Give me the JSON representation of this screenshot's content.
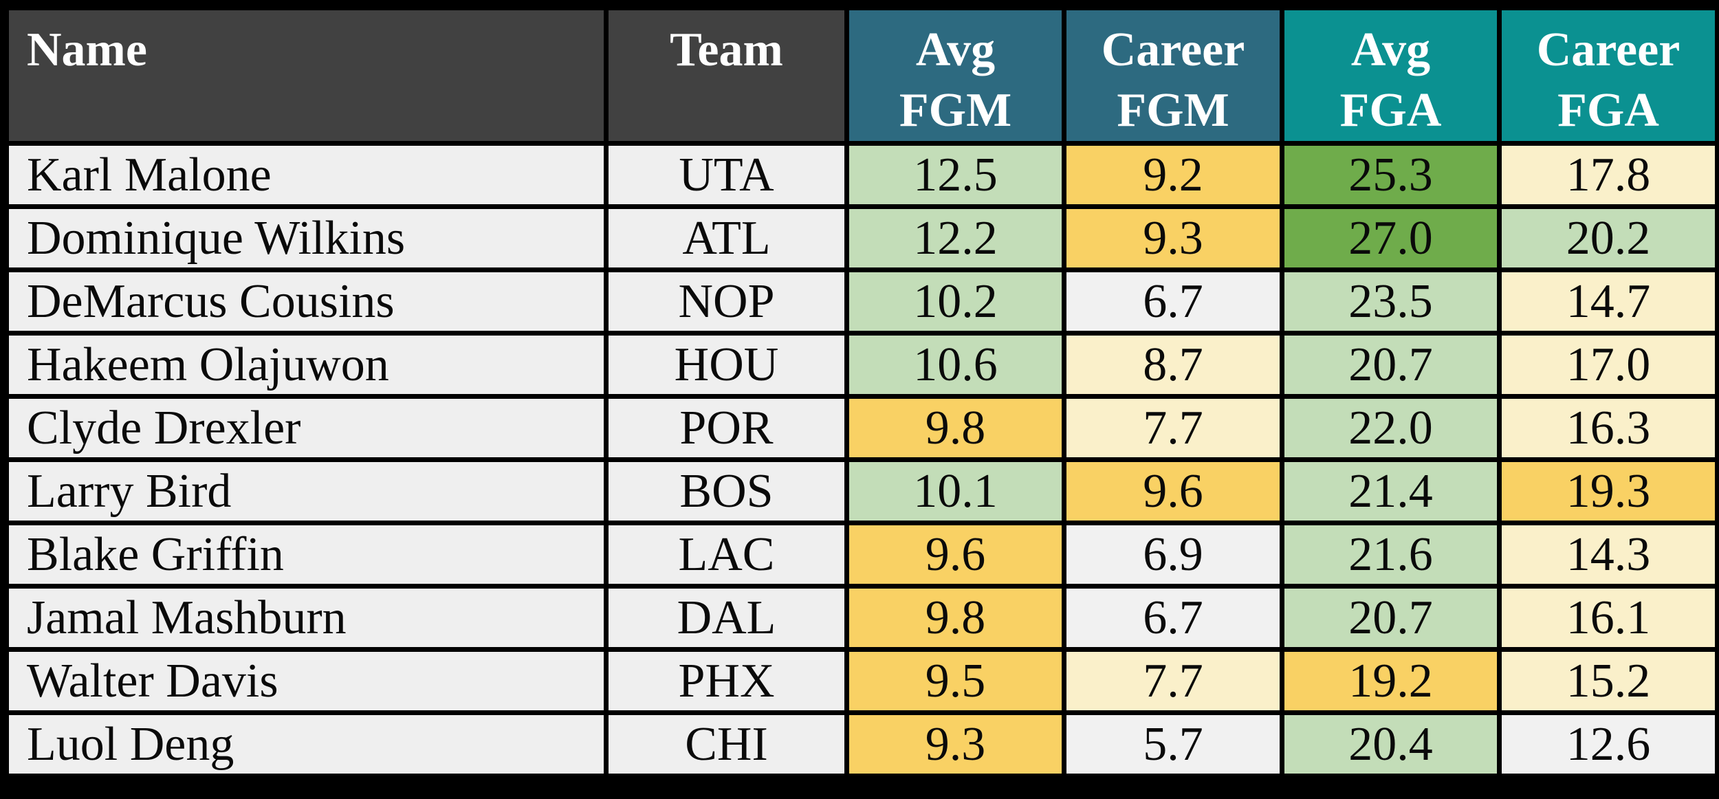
{
  "colors": {
    "frame": "#000000",
    "header_dark": "#414141",
    "header_blue": "#2D6A80",
    "header_teal": "#0B9191",
    "header_text": "#FFFFFF",
    "row_bg": "#EFEFEF",
    "cell_text": "#0A0A0A",
    "light_green": "#C3DDB8",
    "mid_green": "#6FAC4B",
    "gold": "#F9D164",
    "cream": "#FAF0CA",
    "neutral": "#F1F1F1"
  },
  "chart_data": {
    "type": "table",
    "title": "",
    "columns": [
      "Name",
      "Team",
      "Avg FGM",
      "Career FGM",
      "Avg FGA",
      "Career FGA"
    ],
    "header": {
      "name_label": "Name",
      "team_label": "Team",
      "avg_fgm_lines": [
        "Avg",
        "FGM"
      ],
      "career_fgm_lines": [
        "Career",
        "FGM"
      ],
      "avg_fga_lines": [
        "Avg",
        "FGA"
      ],
      "career_fga_lines": [
        "Career",
        "FGA"
      ],
      "header_fills": {
        "name": "header_dark",
        "team": "header_dark",
        "avg_fgm": "header_blue",
        "career_fgm": "header_blue",
        "avg_fga": "header_teal",
        "career_fga": "header_teal"
      }
    },
    "rows": [
      {
        "name": "Karl Malone",
        "team": "UTA",
        "avg_fgm": "12.5",
        "career_fgm": "9.2",
        "avg_fga": "25.3",
        "career_fga": "17.8",
        "fills": {
          "avg_fgm": "light_green",
          "career_fgm": "gold",
          "avg_fga": "mid_green",
          "career_fga": "cream"
        }
      },
      {
        "name": "Dominique Wilkins",
        "team": "ATL",
        "avg_fgm": "12.2",
        "career_fgm": "9.3",
        "avg_fga": "27.0",
        "career_fga": "20.2",
        "fills": {
          "avg_fgm": "light_green",
          "career_fgm": "gold",
          "avg_fga": "mid_green",
          "career_fga": "light_green"
        }
      },
      {
        "name": "DeMarcus Cousins",
        "team": "NOP",
        "avg_fgm": "10.2",
        "career_fgm": "6.7",
        "avg_fga": "23.5",
        "career_fga": "14.7",
        "fills": {
          "avg_fgm": "light_green",
          "career_fgm": "neutral",
          "avg_fga": "light_green",
          "career_fga": "cream"
        }
      },
      {
        "name": "Hakeem Olajuwon",
        "team": "HOU",
        "avg_fgm": "10.6",
        "career_fgm": "8.7",
        "avg_fga": "20.7",
        "career_fga": "17.0",
        "fills": {
          "avg_fgm": "light_green",
          "career_fgm": "cream",
          "avg_fga": "light_green",
          "career_fga": "cream"
        }
      },
      {
        "name": "Clyde Drexler",
        "team": "POR",
        "avg_fgm": "9.8",
        "career_fgm": "7.7",
        "avg_fga": "22.0",
        "career_fga": "16.3",
        "fills": {
          "avg_fgm": "gold",
          "career_fgm": "cream",
          "avg_fga": "light_green",
          "career_fga": "cream"
        }
      },
      {
        "name": "Larry Bird",
        "team": "BOS",
        "avg_fgm": "10.1",
        "career_fgm": "9.6",
        "avg_fga": "21.4",
        "career_fga": "19.3",
        "fills": {
          "avg_fgm": "light_green",
          "career_fgm": "gold",
          "avg_fga": "light_green",
          "career_fga": "gold"
        }
      },
      {
        "name": "Blake Griffin",
        "team": "LAC",
        "avg_fgm": "9.6",
        "career_fgm": "6.9",
        "avg_fga": "21.6",
        "career_fga": "14.3",
        "fills": {
          "avg_fgm": "gold",
          "career_fgm": "neutral",
          "avg_fga": "light_green",
          "career_fga": "cream"
        }
      },
      {
        "name": "Jamal Mashburn",
        "team": "DAL",
        "avg_fgm": "9.8",
        "career_fgm": "6.7",
        "avg_fga": "20.7",
        "career_fga": "16.1",
        "fills": {
          "avg_fgm": "gold",
          "career_fgm": "neutral",
          "avg_fga": "light_green",
          "career_fga": "cream"
        }
      },
      {
        "name": "Walter Davis",
        "team": "PHX",
        "avg_fgm": "9.5",
        "career_fgm": "7.7",
        "avg_fga": "19.2",
        "career_fga": "15.2",
        "fills": {
          "avg_fgm": "gold",
          "career_fgm": "cream",
          "avg_fga": "gold",
          "career_fga": "cream"
        }
      },
      {
        "name": "Luol Deng",
        "team": "CHI",
        "avg_fgm": "9.3",
        "career_fgm": "5.7",
        "avg_fga": "20.4",
        "career_fga": "12.6",
        "fills": {
          "avg_fgm": "gold",
          "career_fgm": "neutral",
          "avg_fga": "light_green",
          "career_fga": "neutral"
        }
      }
    ]
  }
}
